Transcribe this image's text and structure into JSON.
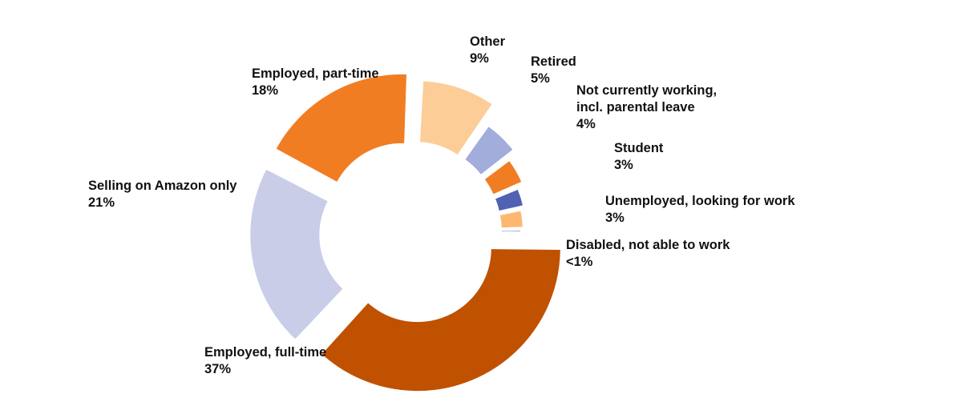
{
  "chart_data": {
    "type": "pie",
    "variant": "exploded-donut",
    "title": "",
    "slices": [
      {
        "name": "Employed, full-time",
        "label_lines": [
          "Employed, full-time"
        ],
        "value": 37,
        "display": "37%",
        "color": "#c05100"
      },
      {
        "name": "Selling on Amazon only",
        "label_lines": [
          "Selling on Amazon only"
        ],
        "value": 21,
        "display": "21%",
        "color": "#c9cde8"
      },
      {
        "name": "Employed, part-time",
        "label_lines": [
          "Employed, part-time"
        ],
        "value": 18,
        "display": "18%",
        "color": "#f17d23"
      },
      {
        "name": "Other",
        "label_lines": [
          "Other"
        ],
        "value": 9,
        "display": "9%",
        "color": "#fdcd98"
      },
      {
        "name": "Retired",
        "label_lines": [
          "Retired"
        ],
        "value": 5,
        "display": "5%",
        "color": "#a2addb"
      },
      {
        "name": "Not currently working, incl. parental leave",
        "label_lines": [
          "Not currently working,",
          "incl. parental leave"
        ],
        "value": 4,
        "display": "4%",
        "color": "#f17d23"
      },
      {
        "name": "Student",
        "label_lines": [
          "Student"
        ],
        "value": 3,
        "display": "3%",
        "color": "#5062b2"
      },
      {
        "name": "Unemployed, looking for work",
        "label_lines": [
          "Unemployed, looking for work"
        ],
        "value": 3,
        "display": "3%",
        "color": "#fdb76f"
      },
      {
        "name": "Disabled, not able to work",
        "label_lines": [
          "Disabled, not able to work"
        ],
        "value": 0.4,
        "display": "<1%",
        "color": "#3f5aa8"
      }
    ]
  }
}
